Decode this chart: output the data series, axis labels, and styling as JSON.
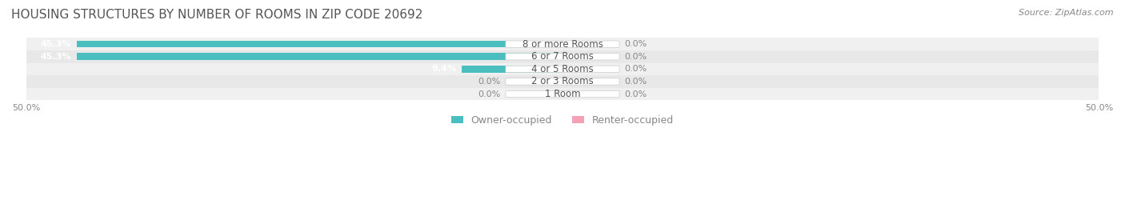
{
  "title": "HOUSING STRUCTURES BY NUMBER OF ROOMS IN ZIP CODE 20692",
  "source": "Source: ZipAtlas.com",
  "categories": [
    "1 Room",
    "2 or 3 Rooms",
    "4 or 5 Rooms",
    "6 or 7 Rooms",
    "8 or more Rooms"
  ],
  "owner_values": [
    0.0,
    0.0,
    9.4,
    45.3,
    45.3
  ],
  "renter_values": [
    0.0,
    0.0,
    0.0,
    0.0,
    0.0
  ],
  "owner_color": "#4BBFBF",
  "renter_color": "#F4A0B5",
  "bar_bg_color": "#E8E8E8",
  "row_bg_colors": [
    "#F0F0F0",
    "#E8E8E8"
  ],
  "x_min": -50.0,
  "x_max": 50.0,
  "x_ticks": [
    -50.0,
    50.0
  ],
  "x_tick_labels": [
    "50.0%",
    "50.0%"
  ],
  "title_fontsize": 11,
  "source_fontsize": 8,
  "label_fontsize": 8,
  "category_fontsize": 8.5,
  "legend_fontsize": 9
}
